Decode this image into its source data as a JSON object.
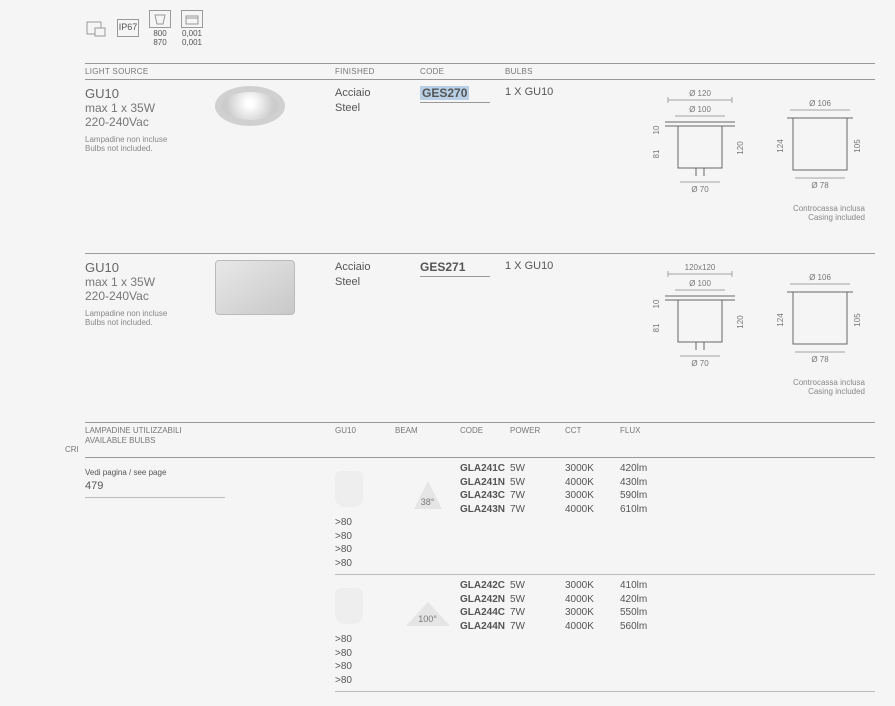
{
  "icons": {
    "ip": "IP67",
    "box1_lines": [
      "800",
      "870"
    ],
    "box2_lines": [
      "0,001",
      "0,001"
    ]
  },
  "headers": {
    "light_source": "LIGHT SOURCE",
    "finished": "FINISHED",
    "code": "CODE",
    "bulbs": "BULBS"
  },
  "products": [
    {
      "title": "GU10",
      "power": "max 1 x 35W",
      "voltage": "220-240Vac",
      "note1": "Lampadine non incluse",
      "note2": "Bulbs not included.",
      "thumb_shape": "round",
      "finish1": "Acciaio",
      "finish2": "Steel",
      "code": "GES270",
      "code_highlight": true,
      "bulb": "1 X GU10",
      "dims": {
        "d1": "Ø 120",
        "d2": "Ø 100",
        "d3": "Ø 70",
        "d4": "Ø 106",
        "d5": "Ø 78",
        "h1": "10",
        "h2": "81",
        "h3": "120",
        "h4": "124",
        "h5": "105"
      },
      "diag_note1": "Controcassa inclusa",
      "diag_note2": "Casing included"
    },
    {
      "title": "GU10",
      "power": "max 1 x 35W",
      "voltage": "220-240Vac",
      "note1": "Lampadine non incluse",
      "note2": "Bulbs not included.",
      "thumb_shape": "square",
      "finish1": "Acciaio",
      "finish2": "Steel",
      "code": "GES271",
      "code_highlight": false,
      "bulb": "1 X GU10",
      "dims": {
        "d1": "120x120",
        "d2": "Ø 100",
        "d3": "Ø 70",
        "d4": "Ø 106",
        "d5": "Ø 78",
        "h1": "10",
        "h2": "81",
        "h3": "120",
        "h4": "124",
        "h5": "105"
      },
      "diag_note1": "Controcassa inclusa",
      "diag_note2": "Casing included"
    }
  ],
  "bulb_section": {
    "heading1": "LAMPADINE UTILIZZABILI",
    "heading2": "AVAILABLE BULBS",
    "see_page": "Vedi pagina / see page",
    "page_num": "479",
    "headers": {
      "type": "GU10",
      "beam": "BEAM",
      "code": "CODE",
      "power": "POWER",
      "cct": "CCT",
      "flux": "FLUX",
      "cri": "CRI"
    }
  },
  "bulb_groups": [
    {
      "beam": "38°",
      "beam_wide": false,
      "rows": [
        {
          "code": "GLA241C",
          "power": "5W",
          "cct": "3000K",
          "flux": "420lm",
          "cri": ">80"
        },
        {
          "code": "GLA241N",
          "power": "5W",
          "cct": "4000K",
          "flux": "430lm",
          "cri": ">80"
        },
        {
          "code": "GLA243C",
          "power": "7W",
          "cct": "3000K",
          "flux": "590lm",
          "cri": ">80"
        },
        {
          "code": "GLA243N",
          "power": "7W",
          "cct": "4000K",
          "flux": "610lm",
          "cri": ">80"
        }
      ]
    },
    {
      "beam": "100°",
      "beam_wide": true,
      "rows": [
        {
          "code": "GLA242C",
          "power": "5W",
          "cct": "3000K",
          "flux": "410lm",
          "cri": ">80"
        },
        {
          "code": "GLA242N",
          "power": "5W",
          "cct": "4000K",
          "flux": "420lm",
          "cri": ">80"
        },
        {
          "code": "GLA244C",
          "power": "7W",
          "cct": "3000K",
          "flux": "550lm",
          "cri": ">80"
        },
        {
          "code": "GLA244N",
          "power": "7W",
          "cct": "4000K",
          "flux": "560lm",
          "cri": ">80"
        }
      ]
    }
  ]
}
